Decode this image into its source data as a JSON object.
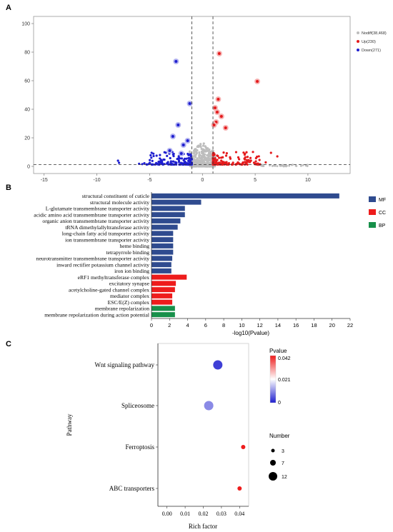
{
  "panel_labels": {
    "a": "A",
    "b": "B",
    "c": "C"
  },
  "chart_data": [
    {
      "type": "scatter",
      "panel": "A",
      "xlim": [
        -16,
        14
      ],
      "ylim": [
        -5,
        105
      ],
      "xticks": [
        -15,
        -10,
        -5,
        0,
        5,
        10
      ],
      "yticks": [
        0,
        20,
        40,
        60,
        80,
        100
      ],
      "threshold_x": [
        -1,
        1
      ],
      "threshold_y": 1.3,
      "legend": [
        {
          "label": "Nodiff(38,468)",
          "color": "#bdbdbd"
        },
        {
          "label": "Up(230)",
          "color": "#e41a1c"
        },
        {
          "label": "Down(271)",
          "color": "#1f1fcf"
        }
      ],
      "highlight_up": [
        [
          1.6,
          79
        ],
        [
          5.2,
          59.5
        ],
        [
          1.5,
          47
        ],
        [
          1.2,
          41
        ],
        [
          1.8,
          35
        ],
        [
          1.3,
          31
        ],
        [
          2.2,
          27
        ],
        [
          1.4,
          38
        ],
        [
          1.1,
          29
        ]
      ],
      "highlight_down": [
        [
          -2.5,
          73.5
        ],
        [
          -1.2,
          44
        ],
        [
          -2.3,
          29
        ],
        [
          -2.8,
          21
        ],
        [
          -1.8,
          15
        ],
        [
          -1.4,
          18
        ],
        [
          -3.1,
          11
        ],
        [
          -2.0,
          9
        ]
      ]
    },
    {
      "type": "bar",
      "panel": "B",
      "orientation": "horizontal",
      "xlabel": "-log10(Pvalue)",
      "xlim": [
        0,
        22
      ],
      "xticks": [
        0,
        2,
        4,
        6,
        8,
        10,
        12,
        14,
        16,
        18,
        20,
        22
      ],
      "legend": [
        {
          "label": "MF",
          "color": "#2f4b8f"
        },
        {
          "label": "CC",
          "color": "#ee1c1c"
        },
        {
          "label": "BP",
          "color": "#17904a"
        }
      ],
      "categories": [
        "structural constituent of cuticle",
        "structural molecule activity",
        "L-glutamate transmembrane transporter activity",
        "acidic amino acid transmembrane transporter activity",
        "organic anion transmembrane transporter activity",
        "tRNA dimethylallyltransferase activity",
        "long-chain fatty acid transporter activity",
        "ion transmembrane transporter activity",
        "heme binding",
        "tetrapyrrole binding",
        "neurotransmitter transmembrane transporter activity",
        "inward rectifier potassium channel activity",
        "iron ion binding",
        "eRF1 methyltransferase complex",
        "excitatory synapse",
        "acetylcholine-gated channel complex",
        "mediator complex",
        "ESC/E(Z) complex",
        "membrane repolarization",
        "membrane repolarization during action potential"
      ],
      "values": [
        20.8,
        5.5,
        3.7,
        3.7,
        3.2,
        2.9,
        2.4,
        2.4,
        2.4,
        2.4,
        2.3,
        2.2,
        2.2,
        3.9,
        2.7,
        2.6,
        2.3,
        2.3,
        2.6,
        2.6
      ],
      "groups": [
        "MF",
        "MF",
        "MF",
        "MF",
        "MF",
        "MF",
        "MF",
        "MF",
        "MF",
        "MF",
        "MF",
        "MF",
        "MF",
        "CC",
        "CC",
        "CC",
        "CC",
        "CC",
        "BP",
        "BP"
      ]
    },
    {
      "type": "scatter",
      "panel": "C",
      "xlabel": "Rich factor",
      "ylabel": "Pathway",
      "xlim": [
        -0.005,
        0.045
      ],
      "xticks": [
        "0.00",
        "0.01",
        "0.02",
        "0.03",
        "0.04"
      ],
      "categories": [
        "Wnt signaling pathway",
        "Spliceosome",
        "Ferroptosis",
        "ABC transporters"
      ],
      "x": [
        0.028,
        0.023,
        0.042,
        0.04
      ],
      "pvalue": [
        0.003,
        0.01,
        0.042,
        0.042
      ],
      "number": [
        12,
        12,
        3,
        3
      ],
      "colorbar": {
        "title": "Pvalue",
        "ticks": [
          "0.042",
          "0.021",
          "0"
        ],
        "low_color": "#1f1fcf",
        "mid_color": "#ffffff",
        "high_color": "#ee1c1c"
      },
      "size_legend": {
        "title": "Number",
        "values": [
          "3",
          "7",
          "12"
        ]
      }
    }
  ]
}
